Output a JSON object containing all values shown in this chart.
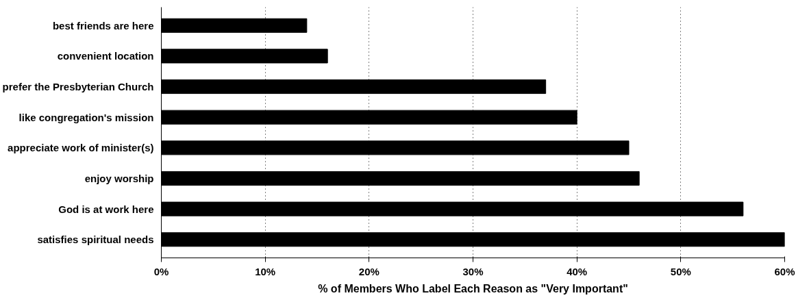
{
  "chart_data": {
    "type": "bar",
    "orientation": "horizontal",
    "xlabel": "% of Members Who Label Each Reason as \"Very Important\"",
    "categories": [
      "best friends are here",
      "convenient location",
      "prefer the Presbyterian Church",
      "like congregation's mission",
      "appreciate work of minister(s)",
      "enjoy worship",
      "God is at work here",
      "satisfies spiritual needs"
    ],
    "values": [
      14,
      16,
      37,
      40,
      45,
      46,
      56,
      60
    ],
    "color": "#000000",
    "xlim": [
      0,
      60
    ],
    "xticks": [
      {
        "value": 0,
        "label": "0%"
      },
      {
        "value": 10,
        "label": "10%"
      },
      {
        "value": 20,
        "label": "20%"
      },
      {
        "value": 30,
        "label": "30%"
      },
      {
        "value": 40,
        "label": "40%"
      },
      {
        "value": 50,
        "label": "50%"
      },
      {
        "value": 60,
        "label": "60%"
      }
    ],
    "grid": "x"
  }
}
